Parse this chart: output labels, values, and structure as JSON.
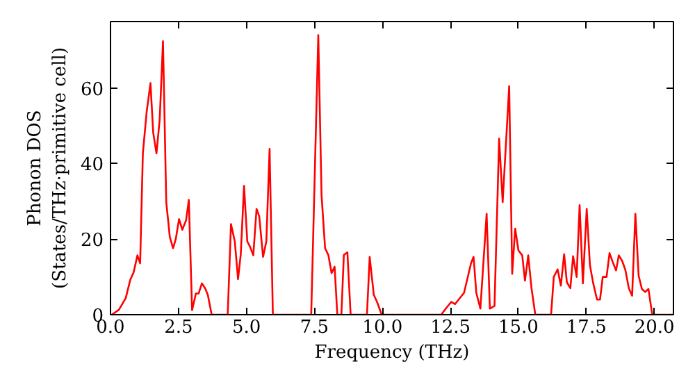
{
  "chart_data": {
    "type": "line",
    "xlabel": "Frequency (THz)",
    "ylabel": "Phonon DOS\n(States/THz·primitive cell)",
    "xlim": [
      0,
      20.7
    ],
    "ylim": [
      0,
      77.6
    ],
    "xticks": [
      {
        "value": 0,
        "label": "0.0"
      },
      2.5,
      {
        "value": 5,
        "label": "5.0"
      },
      7.5,
      {
        "value": 10,
        "label": "10.0"
      },
      12.5,
      {
        "value": 15,
        "label": "15.0"
      },
      17.5,
      {
        "value": 20,
        "label": "20.0"
      }
    ],
    "yticks": [
      0,
      20,
      40,
      60
    ],
    "grid": false,
    "marker": "none",
    "line_style": "solid",
    "series": [
      {
        "color": "#ff0000",
        "x": [
          0.05,
          0.31,
          0.56,
          0.73,
          0.85,
          0.99,
          1.09,
          1.19,
          1.33,
          1.47,
          1.57,
          1.69,
          1.81,
          1.93,
          2.05,
          2.18,
          2.3,
          2.4,
          2.52,
          2.64,
          2.78,
          2.88,
          3.0,
          3.14,
          3.24,
          3.36,
          3.48,
          3.58,
          3.72,
          4.31,
          4.43,
          4.57,
          4.69,
          4.79,
          4.91,
          5.03,
          5.13,
          5.25,
          5.37,
          5.47,
          5.61,
          5.73,
          5.85,
          5.97,
          7.38,
          7.64,
          7.76,
          7.89,
          8.01,
          8.13,
          8.24,
          8.34,
          8.49,
          8.58,
          8.71,
          8.83,
          9.43,
          9.53,
          9.68,
          9.8,
          9.97,
          12.16,
          12.33,
          12.53,
          12.67,
          13.0,
          13.26,
          13.35,
          13.45,
          13.6,
          13.83,
          13.95,
          14.12,
          14.29,
          14.42,
          14.66,
          14.77,
          14.88,
          15.0,
          15.14,
          15.24,
          15.36,
          15.48,
          15.62,
          16.2,
          16.3,
          16.44,
          16.56,
          16.68,
          16.78,
          16.91,
          17.01,
          17.14,
          17.25,
          17.37,
          17.51,
          17.63,
          17.75,
          17.89,
          18.0,
          18.1,
          18.24,
          18.35,
          18.47,
          18.59,
          18.69,
          18.81,
          18.93,
          19.06,
          19.18,
          19.3,
          19.42,
          19.54,
          19.66,
          19.78,
          19.92,
          20.7
        ],
        "values": [
          0,
          1.3,
          4.4,
          9.3,
          11.2,
          15.7,
          13.6,
          42.7,
          53.7,
          61.3,
          48.2,
          42.7,
          51.8,
          72.4,
          29.8,
          20.6,
          17.6,
          20,
          25.3,
          22.5,
          25,
          30.4,
          1.2,
          5.6,
          5.6,
          8.3,
          7,
          5.2,
          0,
          0,
          24,
          19.4,
          9.4,
          16,
          34.1,
          19.4,
          18,
          15.7,
          28,
          26,
          15.3,
          19.4,
          43.9,
          0,
          0,
          74,
          31.7,
          17.6,
          15.8,
          11,
          12.7,
          0,
          0,
          15.8,
          16.5,
          0,
          0,
          15.3,
          5.3,
          3.4,
          0,
          0,
          1.6,
          3.4,
          2.8,
          5.8,
          13.7,
          15.3,
          5.8,
          1.6,
          26.7,
          1.6,
          2.3,
          46.6,
          29.8,
          60.5,
          10.8,
          22.8,
          17,
          15.7,
          9,
          15.7,
          7,
          0,
          0,
          10,
          12,
          7.7,
          16,
          8.6,
          7,
          15.5,
          10,
          29,
          8.3,
          28,
          13,
          8.3,
          4,
          4,
          10,
          10,
          16.3,
          13.9,
          11.7,
          15.7,
          14.3,
          11.9,
          7,
          5,
          26.7,
          10.3,
          6.8,
          6,
          6.8,
          0,
          0
        ]
      }
    ]
  }
}
